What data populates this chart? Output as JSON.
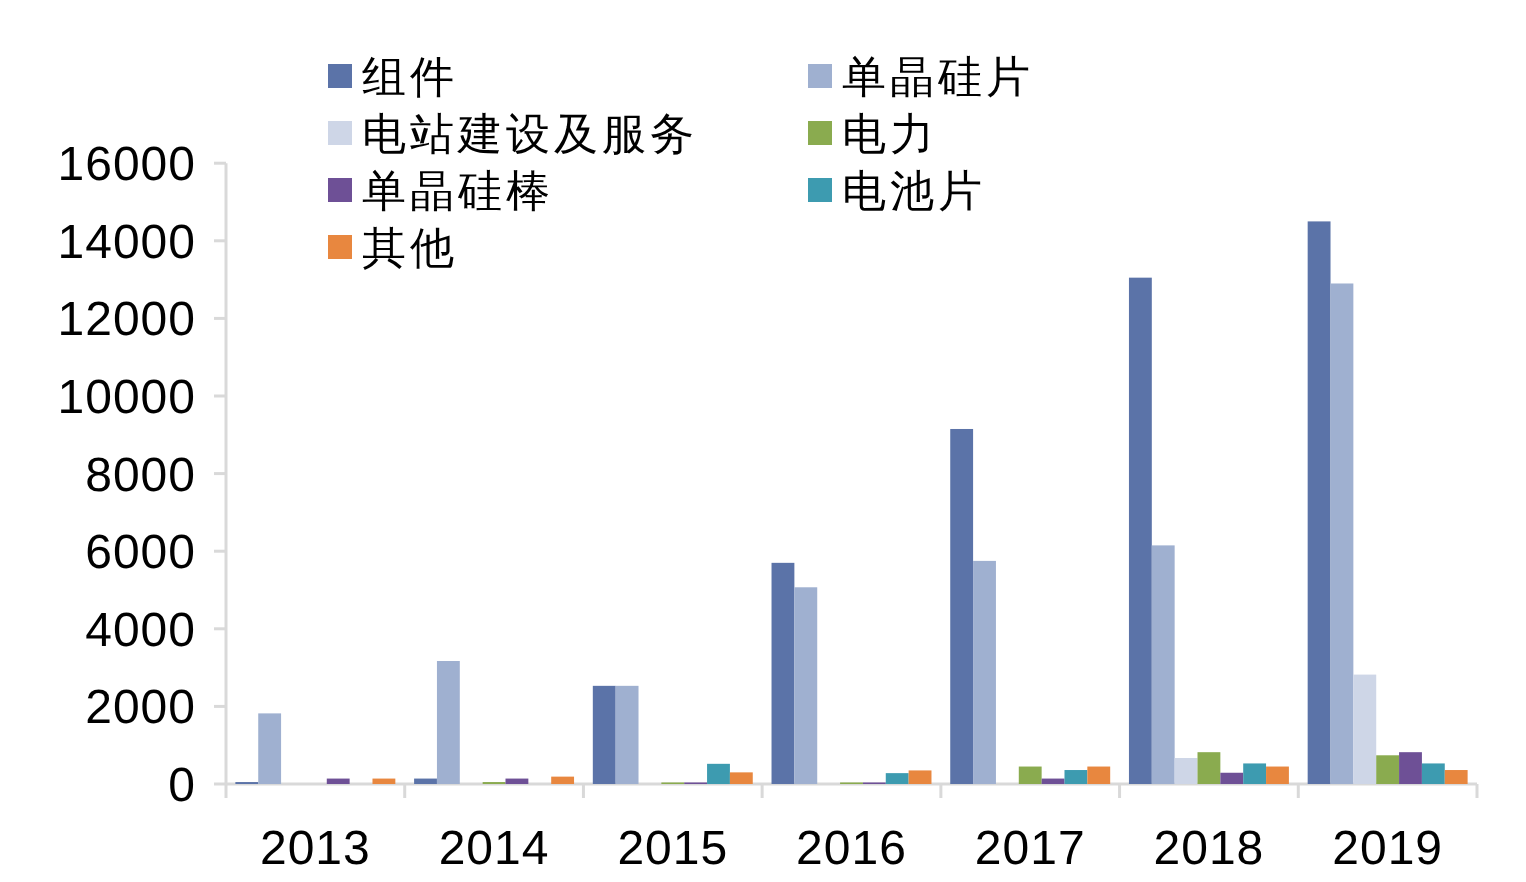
{
  "chart_data": {
    "type": "bar",
    "categories": [
      "2013",
      "2014",
      "2015",
      "2016",
      "2017",
      "2018",
      "2019"
    ],
    "series": [
      {
        "name": "组件",
        "color": "#5b73a8",
        "values": [
          50,
          140,
          2530,
          5700,
          9150,
          13050,
          14500
        ]
      },
      {
        "name": "单晶硅片",
        "color": "#9fb0d0",
        "values": [
          1820,
          3170,
          2530,
          5070,
          5750,
          6150,
          12900
        ]
      },
      {
        "name": "电站建设及服务",
        "color": "#ced6e7",
        "values": [
          null,
          null,
          null,
          null,
          null,
          670,
          2820
        ]
      },
      {
        "name": "电力",
        "color": "#8aab4f",
        "values": [
          null,
          50,
          40,
          40,
          450,
          820,
          740
        ]
      },
      {
        "name": "单晶硅棒",
        "color": "#6e5096",
        "values": [
          140,
          140,
          40,
          40,
          140,
          290,
          820
        ]
      },
      {
        "name": "电池片",
        "color": "#3d9bb0",
        "values": [
          null,
          null,
          520,
          280,
          360,
          530,
          530
        ]
      },
      {
        "name": "其他",
        "color": "#e8873f",
        "values": [
          140,
          190,
          300,
          350,
          450,
          450,
          360
        ]
      }
    ],
    "ylim": [
      0,
      16000
    ],
    "yticks": [
      0,
      2000,
      4000,
      6000,
      8000,
      10000,
      12000,
      14000,
      16000
    ],
    "legend": "top left"
  }
}
